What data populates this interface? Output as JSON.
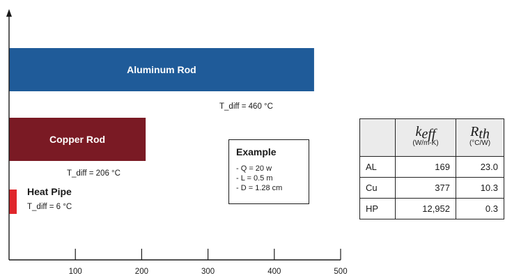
{
  "chart_data": {
    "type": "bar",
    "orientation": "horizontal",
    "categories": [
      "Aluminum Rod",
      "Copper Rod",
      "Heat Pipe"
    ],
    "values": [
      460,
      206,
      6
    ],
    "colors": [
      "#1f5b99",
      "#7a1a24",
      "#e0262b"
    ],
    "annotations": [
      "T_diff = 460 °C",
      "T_diff = 206 °C",
      "T_diff = 6 °C"
    ],
    "x_ticks": [
      "100",
      "200",
      "300",
      "400",
      "500"
    ],
    "xlim": [
      0,
      500
    ],
    "grid": false
  },
  "example": {
    "title": "Example",
    "lines": [
      "- Q = 20 w",
      "- L = 0.5 m",
      "- D = 1.28 cm"
    ]
  },
  "table": {
    "headers": [
      {
        "symbol": "k",
        "sub": "eff",
        "unit": "(W/m-K)"
      },
      {
        "symbol": "R",
        "sub": "th",
        "unit": "(°C/W)"
      }
    ],
    "rows": [
      {
        "label": "AL",
        "k": "169",
        "r": "23.0"
      },
      {
        "label": "Cu",
        "k": "377",
        "r": "10.3"
      },
      {
        "label": "HP",
        "k": "12,952",
        "r": "0.3"
      }
    ]
  }
}
